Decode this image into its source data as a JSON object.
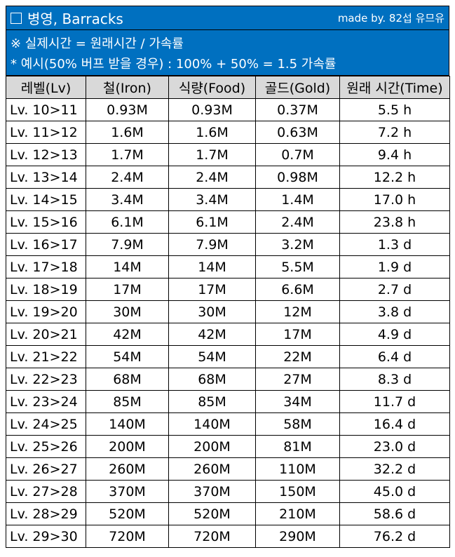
{
  "header": {
    "title": "병영, Barracks",
    "credit": "made by. 82섭 유므유"
  },
  "notes": [
    "※ 실제시간 = 원래시간 / 가속률",
    "* 예시(50% 버프 받을 경우) : 100% + 50% = 1.5 가속률"
  ],
  "table": {
    "columns": [
      "레벨(Lv)",
      "철(Iron)",
      "식량(Food)",
      "골드(Gold)",
      "원래 시간(Time)"
    ],
    "rows": [
      [
        "Lv. 10>11",
        "0.93M",
        "0.93M",
        "0.37M",
        "5.5 h"
      ],
      [
        "Lv. 11>12",
        "1.6M",
        "1.6M",
        "0.63M",
        "7.2 h"
      ],
      [
        "Lv. 12>13",
        "1.7M",
        "1.7M",
        "0.7M",
        "9.4 h"
      ],
      [
        "Lv. 13>14",
        "2.4M",
        "2.4M",
        "0.98M",
        "12.2 h"
      ],
      [
        "Lv. 14>15",
        "3.4M",
        "3.4M",
        "1.4M",
        "17.0 h"
      ],
      [
        "Lv. 15>16",
        "6.1M",
        "6.1M",
        "2.4M",
        "23.8 h"
      ],
      [
        "Lv. 16>17",
        "7.9M",
        "7.9M",
        "3.2M",
        "1.3 d"
      ],
      [
        "Lv. 17>18",
        "14M",
        "14M",
        "5.5M",
        "1.9 d"
      ],
      [
        "Lv. 18>19",
        "17M",
        "17M",
        "6.6M",
        "2.7 d"
      ],
      [
        "Lv. 19>20",
        "30M",
        "30M",
        "12M",
        "3.8 d"
      ],
      [
        "Lv. 20>21",
        "42M",
        "42M",
        "17M",
        "4.9 d"
      ],
      [
        "Lv. 21>22",
        "54M",
        "54M",
        "22M",
        "6.4 d"
      ],
      [
        "Lv. 22>23",
        "68M",
        "68M",
        "27M",
        "8.3 d"
      ],
      [
        "Lv. 23>24",
        "85M",
        "85M",
        "34M",
        "11.7 d"
      ],
      [
        "Lv. 24>25",
        "140M",
        "140M",
        "58M",
        "16.4 d"
      ],
      [
        "Lv. 25>26",
        "200M",
        "200M",
        "81M",
        "23.0 d"
      ],
      [
        "Lv. 26>27",
        "260M",
        "260M",
        "110M",
        "32.2 d"
      ],
      [
        "Lv. 27>28",
        "370M",
        "370M",
        "150M",
        "45.0 d"
      ],
      [
        "Lv. 28>29",
        "520M",
        "520M",
        "210M",
        "58.6 d"
      ],
      [
        "Lv. 29>30",
        "720M",
        "720M",
        "290M",
        "76.2 d"
      ]
    ]
  },
  "colors": {
    "header_bg": "#0070c0",
    "column_header_bg": "#d9d9d9",
    "grid": "#000000"
  }
}
